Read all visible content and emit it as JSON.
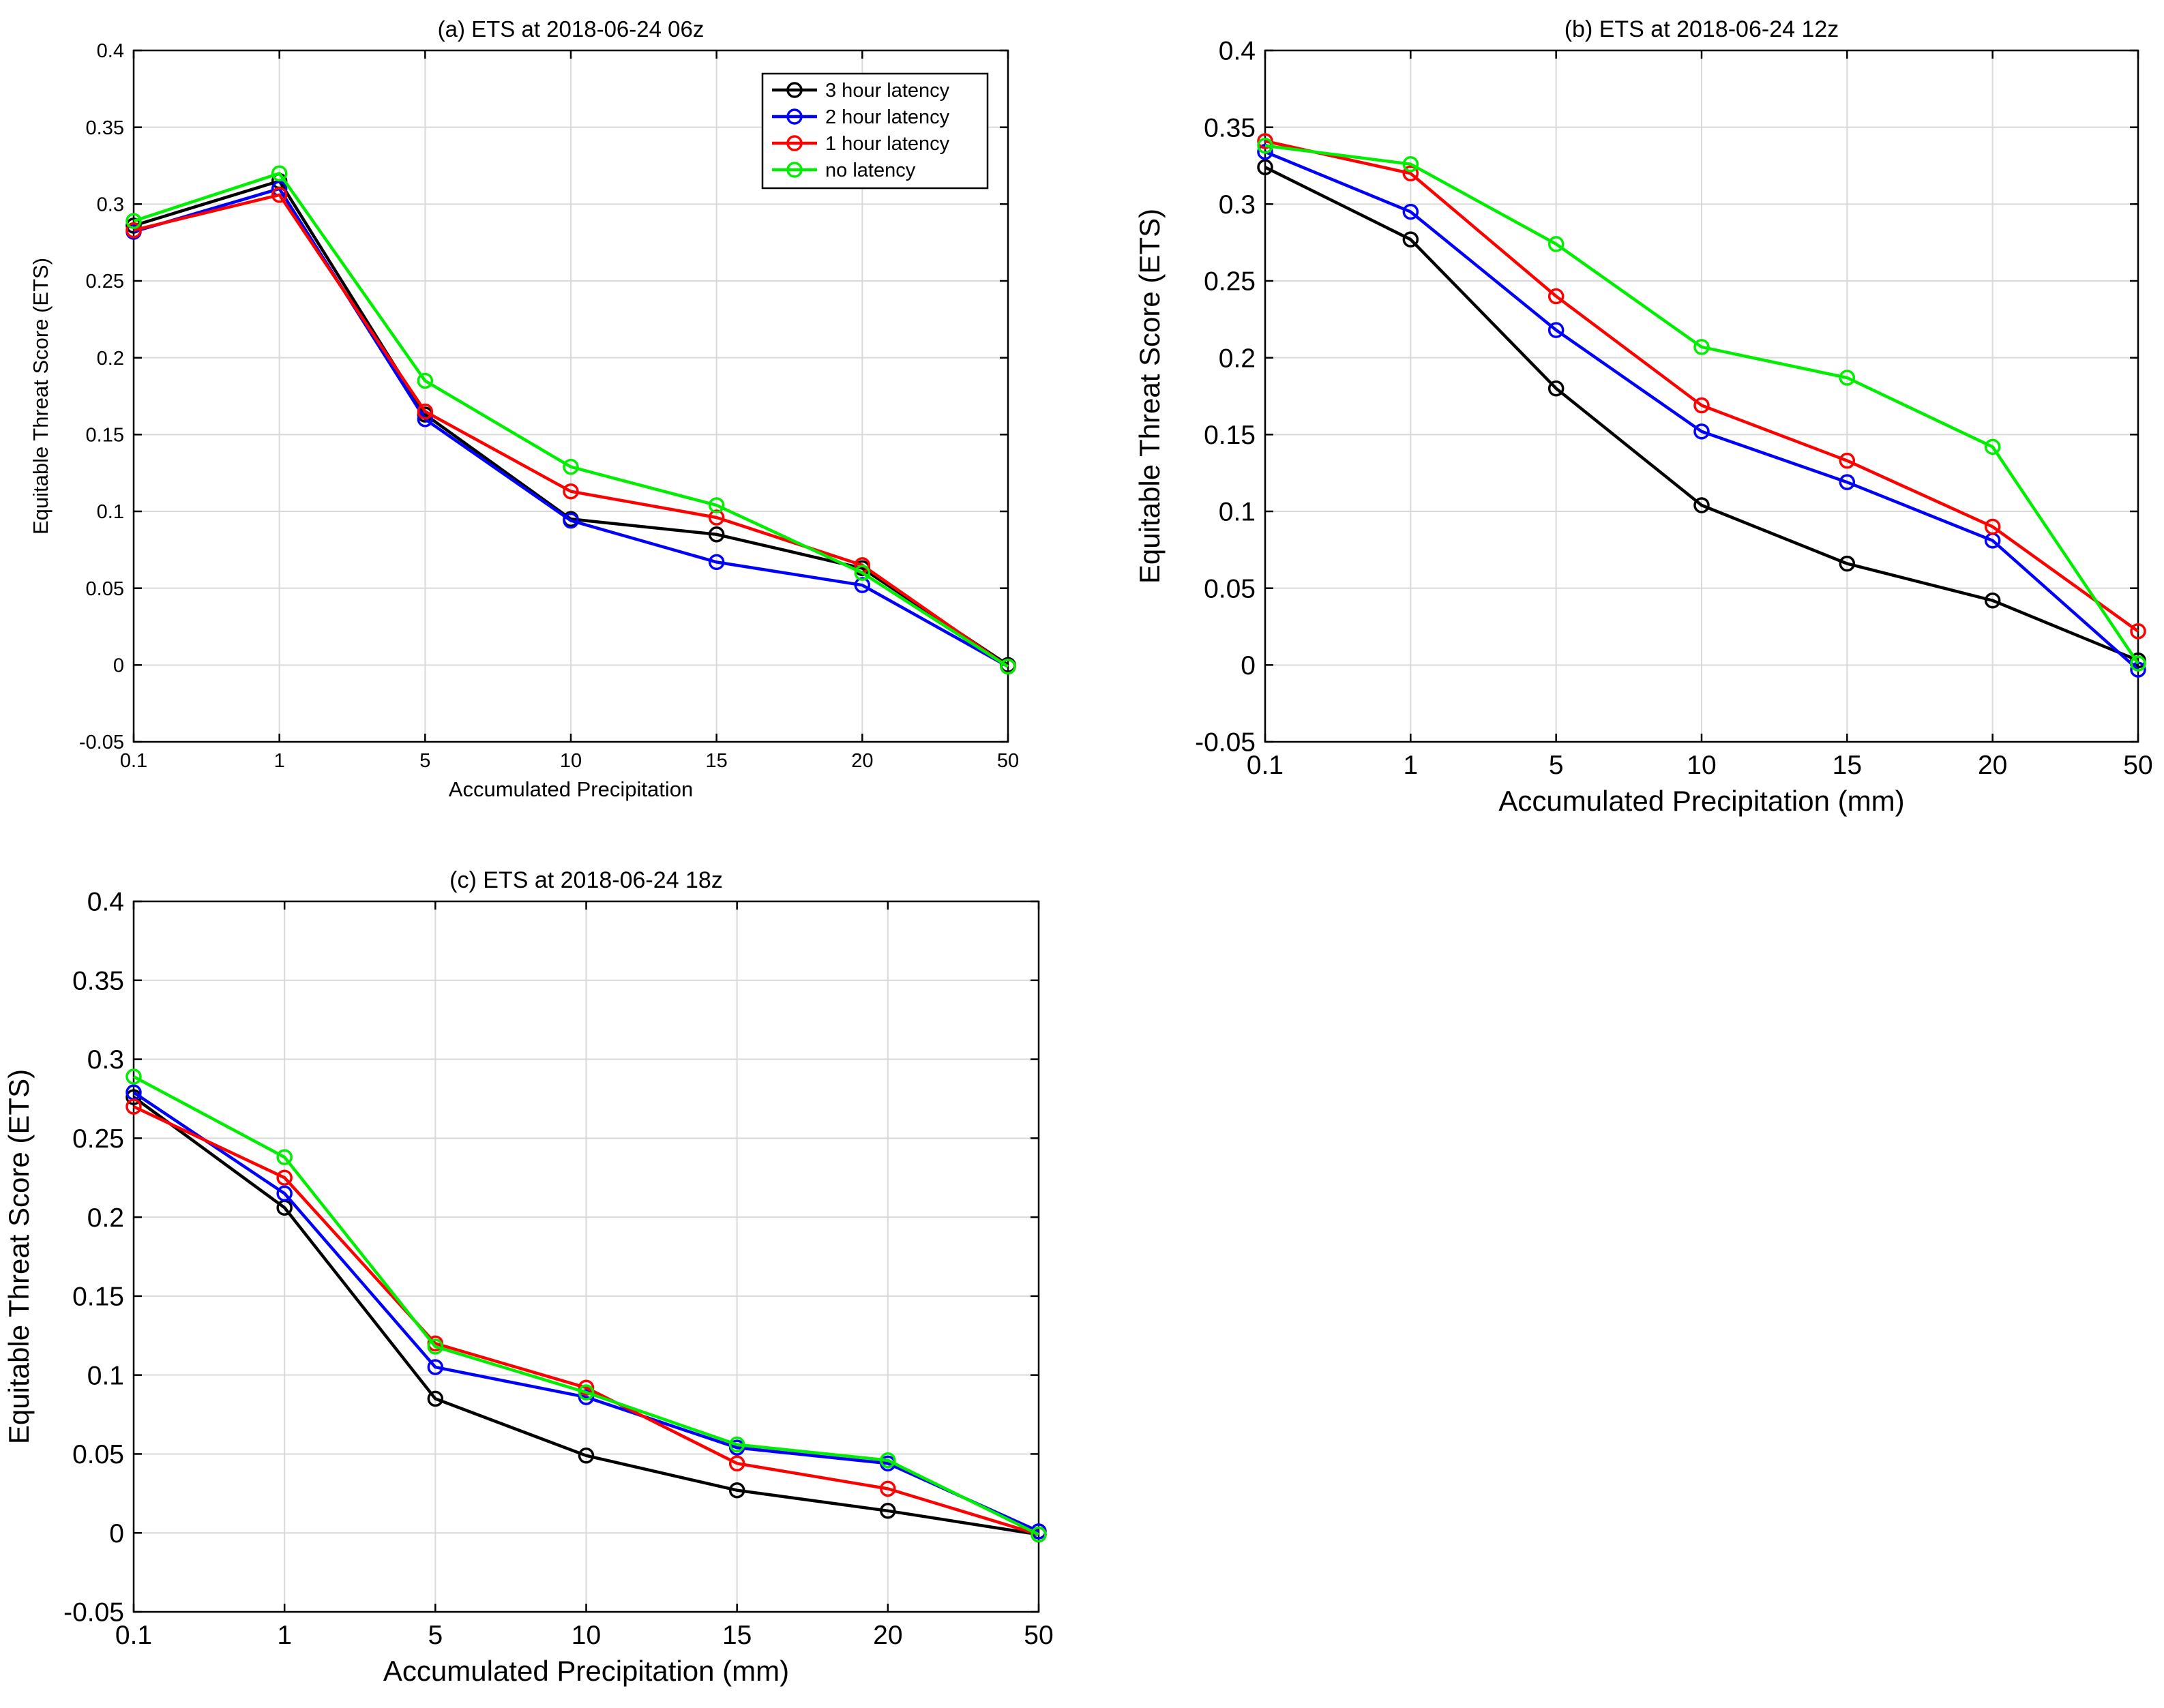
{
  "figure": {
    "background": "#ffffff"
  },
  "chart_data": [
    {
      "type": "line",
      "title": "(a) ETS at 2018-06-24 06z",
      "xlabel": "Accumulated Precipitation",
      "ylabel": "Equitable Threat Score (ETS)",
      "categories": [
        "0.1",
        "1",
        "5",
        "10",
        "15",
        "20",
        "50"
      ],
      "ylim": [
        -0.05,
        0.4
      ],
      "yticks": [
        -0.05,
        0,
        0.05,
        0.1,
        0.15,
        0.2,
        0.25,
        0.3,
        0.35,
        0.4
      ],
      "ytick_labels": [
        "-0.05",
        "0",
        "0.05",
        "0.1",
        "0.15",
        "0.2",
        "0.25",
        "0.3",
        "0.35",
        "0.4"
      ],
      "grid": true,
      "legend": "top-right",
      "series": [
        {
          "name": "3 hour latency",
          "color": "#000000",
          "values": [
            0.286,
            0.315,
            0.163,
            0.095,
            0.085,
            0.063,
            0.0
          ]
        },
        {
          "name": "2 hour latency",
          "color": "#0000ff",
          "values": [
            0.282,
            0.31,
            0.16,
            0.094,
            0.067,
            0.052,
            -0.001
          ]
        },
        {
          "name": "1 hour latency",
          "color": "#ff0000",
          "values": [
            0.283,
            0.306,
            0.165,
            0.113,
            0.096,
            0.065,
            -0.001
          ]
        },
        {
          "name": "no latency",
          "color": "#00ee00",
          "values": [
            0.289,
            0.32,
            0.185,
            0.129,
            0.104,
            0.06,
            -0.001
          ]
        }
      ]
    },
    {
      "type": "line",
      "title": "(b) ETS at 2018-06-24 12z",
      "xlabel": "Accumulated Precipitation (mm)",
      "ylabel": "Equitable Threat Score (ETS)",
      "categories": [
        "0.1",
        "1",
        "5",
        "10",
        "15",
        "20",
        "50"
      ],
      "ylim": [
        -0.05,
        0.4
      ],
      "yticks": [
        -0.05,
        0,
        0.05,
        0.1,
        0.15,
        0.2,
        0.25,
        0.3,
        0.35,
        0.4
      ],
      "ytick_labels": [
        "-0.05",
        "0",
        "0.05",
        "0.1",
        "0.15",
        "0.2",
        "0.25",
        "0.3",
        "0.35",
        "0.4"
      ],
      "grid": true,
      "series": [
        {
          "name": "3 hour latency",
          "color": "#000000",
          "values": [
            0.324,
            0.277,
            0.18,
            0.104,
            0.066,
            0.042,
            0.003
          ]
        },
        {
          "name": "2 hour latency",
          "color": "#0000ff",
          "values": [
            0.334,
            0.295,
            0.218,
            0.152,
            0.119,
            0.081,
            -0.003
          ]
        },
        {
          "name": "1 hour latency",
          "color": "#ff0000",
          "values": [
            0.341,
            0.32,
            0.24,
            0.169,
            0.133,
            0.09,
            0.022
          ]
        },
        {
          "name": "no latency",
          "color": "#00ee00",
          "values": [
            0.338,
            0.326,
            0.274,
            0.207,
            0.187,
            0.142,
            0.001
          ]
        }
      ]
    },
    {
      "type": "line",
      "title": "(c) ETS at 2018-06-24 18z",
      "xlabel": "Accumulated Precipitation (mm)",
      "ylabel": "Equitable Threat Score (ETS)",
      "categories": [
        "0.1",
        "1",
        "5",
        "10",
        "15",
        "20",
        "50"
      ],
      "ylim": [
        -0.05,
        0.4
      ],
      "yticks": [
        -0.05,
        0,
        0.05,
        0.1,
        0.15,
        0.2,
        0.25,
        0.3,
        0.35,
        0.4
      ],
      "ytick_labels": [
        "-0.05",
        "0",
        "0.05",
        "0.1",
        "0.15",
        "0.2",
        "0.25",
        "0.3",
        "0.35",
        "0.4"
      ],
      "grid": true,
      "series": [
        {
          "name": "3 hour latency",
          "color": "#000000",
          "values": [
            0.276,
            0.206,
            0.085,
            0.049,
            0.027,
            0.014,
            -0.001
          ]
        },
        {
          "name": "2 hour latency",
          "color": "#0000ff",
          "values": [
            0.279,
            0.215,
            0.105,
            0.086,
            0.054,
            0.044,
            0.001
          ]
        },
        {
          "name": "1 hour latency",
          "color": "#ff0000",
          "values": [
            0.27,
            0.225,
            0.12,
            0.092,
            0.044,
            0.028,
            -0.001
          ]
        },
        {
          "name": "no latency",
          "color": "#00ee00",
          "values": [
            0.289,
            0.238,
            0.118,
            0.089,
            0.056,
            0.046,
            -0.001
          ]
        }
      ]
    }
  ]
}
